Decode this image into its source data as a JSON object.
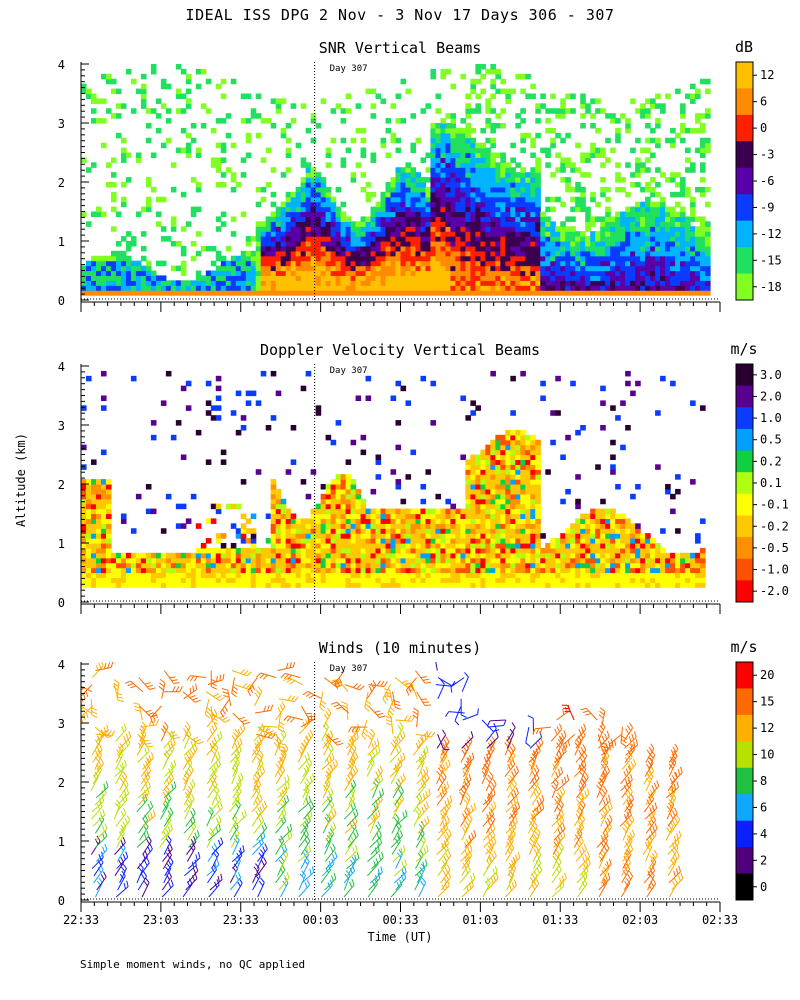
{
  "title": "IDEAL ISS DPG   2 Nov -  3 Nov 17 Days 306 - 307",
  "y_axis_label": "Altitude (km)",
  "x_axis_label": "Time (UT)",
  "footnote": "Simple moment winds, no QC applied",
  "marker_label": "Day 307",
  "chart_data": [
    {
      "type": "heatmap",
      "title": "SNR Vertical Beams",
      "unit": "dB",
      "x_ticks": [
        "22:33",
        "23:03",
        "23:33",
        "00:03",
        "00:33",
        "01:03",
        "01:33",
        "02:03",
        "02:33"
      ],
      "y_ticks": [
        "0",
        "1",
        "2",
        "3",
        "4"
      ],
      "ylim": [
        0,
        4
      ],
      "day_marker_time": "00:03",
      "colorbar": {
        "labels": [
          "12",
          "6",
          "0",
          "-3",
          "-6",
          "-9",
          "-12",
          "-15",
          "-18"
        ],
        "colors": [
          "#ffc000",
          "#ff8c00",
          "#ff2000",
          "#3c0050",
          "#5a00a8",
          "#0a3cff",
          "#00b4ff",
          "#20e060",
          "#80ff20"
        ]
      }
    },
    {
      "type": "heatmap",
      "title": "Doppler Velocity Vertical Beams",
      "unit": "m/s",
      "x_ticks": [
        "22:33",
        "23:03",
        "23:33",
        "00:03",
        "00:33",
        "01:03",
        "01:33",
        "02:03",
        "02:33"
      ],
      "y_ticks": [
        "0",
        "1",
        "2",
        "3",
        "4"
      ],
      "ylim": [
        0,
        4
      ],
      "day_marker_time": "00:03",
      "colorbar": {
        "labels": [
          "3.0",
          "2.0",
          "1.0",
          "0.5",
          "0.2",
          "0.1",
          "-0.1",
          "-0.2",
          "-0.5",
          "-1.0",
          "-2.0"
        ],
        "colors": [
          "#2a0030",
          "#5a0090",
          "#0a3cff",
          "#00a0ff",
          "#10d040",
          "#b0ff10",
          "#ffff00",
          "#ffc800",
          "#ff9000",
          "#ff5000",
          "#ff0000"
        ]
      }
    },
    {
      "type": "wind-barbs",
      "title": "Winds (10 minutes)",
      "unit": "m/s",
      "x_ticks": [
        "22:33",
        "23:03",
        "23:33",
        "00:03",
        "00:33",
        "01:03",
        "01:33",
        "02:03",
        "02:33"
      ],
      "y_ticks": [
        "0",
        "1",
        "2",
        "3",
        "4"
      ],
      "ylim": [
        0,
        4
      ],
      "day_marker_time": "00:03",
      "colorbar": {
        "labels": [
          "20",
          "15",
          "12",
          "10",
          "8",
          "6",
          "4",
          "2",
          "0"
        ],
        "colors": [
          "#ff0000",
          "#ff6a00",
          "#ffb000",
          "#b8e000",
          "#20c040",
          "#10a8ff",
          "#0a20ff",
          "#50007a",
          "#000000"
        ]
      }
    }
  ]
}
